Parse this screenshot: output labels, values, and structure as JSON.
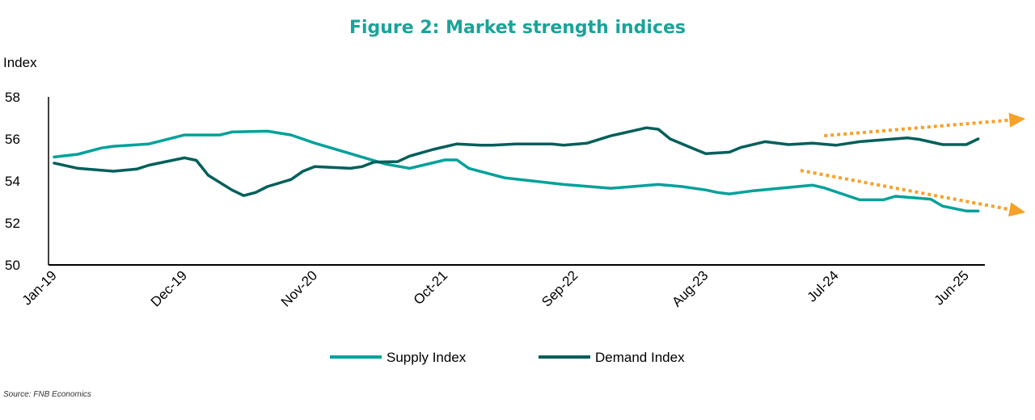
{
  "chart_data": {
    "type": "line",
    "title": "Figure 2: Market strength indices",
    "ylabel": "Index",
    "xlabel": "",
    "ylim": [
      50,
      58
    ],
    "yticks": [
      "50",
      "52",
      "54",
      "56",
      "58"
    ],
    "xticks": [
      {
        "date": "2019-01",
        "label": "Jan-19"
      },
      {
        "date": "2019-12",
        "label": "Dec-19"
      },
      {
        "date": "2020-11",
        "label": "Nov-20"
      },
      {
        "date": "2021-10",
        "label": "Oct-21"
      },
      {
        "date": "2022-09",
        "label": "Sep-22"
      },
      {
        "date": "2023-08",
        "label": "Aug-23"
      },
      {
        "date": "2024-07",
        "label": "Jul-24"
      },
      {
        "date": "2025-06",
        "label": "Jun-25"
      }
    ],
    "grid": false,
    "legend": "bottom",
    "series": [
      {
        "name": "Supply Index",
        "color": "#00A19A",
        "points": [
          [
            "2019-01",
            55.14
          ],
          [
            "2019-03",
            55.27
          ],
          [
            "2019-05",
            55.57
          ],
          [
            "2019-06",
            55.65
          ],
          [
            "2019-09",
            55.76
          ],
          [
            "2019-12",
            56.19
          ],
          [
            "2020-03",
            56.19
          ],
          [
            "2020-04",
            56.33
          ],
          [
            "2020-07",
            56.37
          ],
          [
            "2020-09",
            56.19
          ],
          [
            "2020-11",
            55.8
          ],
          [
            "2021-02",
            55.3
          ],
          [
            "2021-05",
            54.8
          ],
          [
            "2021-07",
            54.6
          ],
          [
            "2021-10",
            55.0
          ],
          [
            "2021-11",
            55.0
          ],
          [
            "2021-12",
            54.6
          ],
          [
            "2022-03",
            54.15
          ],
          [
            "2022-08",
            53.83
          ],
          [
            "2022-12",
            53.65
          ],
          [
            "2023-04",
            53.83
          ],
          [
            "2023-06",
            53.73
          ],
          [
            "2023-08",
            53.57
          ],
          [
            "2023-09",
            53.45
          ],
          [
            "2023-10",
            53.38
          ],
          [
            "2023-12",
            53.53
          ],
          [
            "2024-05",
            53.8
          ],
          [
            "2024-06",
            53.67
          ],
          [
            "2024-09",
            53.1
          ],
          [
            "2024-11",
            53.1
          ],
          [
            "2024-12",
            53.27
          ],
          [
            "2025-03",
            53.13
          ],
          [
            "2025-04",
            52.8
          ],
          [
            "2025-06",
            52.57
          ],
          [
            "2025-07",
            52.57
          ]
        ]
      },
      {
        "name": "Demand Index",
        "color": "#005F5A",
        "points": [
          [
            "2019-01",
            54.85
          ],
          [
            "2019-03",
            54.6
          ],
          [
            "2019-06",
            54.46
          ],
          [
            "2019-08",
            54.57
          ],
          [
            "2019-09",
            54.75
          ],
          [
            "2019-12",
            55.1
          ],
          [
            "2020-01",
            54.98
          ],
          [
            "2020-02",
            54.27
          ],
          [
            "2020-04",
            53.57
          ],
          [
            "2020-05",
            53.3
          ],
          [
            "2020-06",
            53.45
          ],
          [
            "2020-07",
            53.73
          ],
          [
            "2020-09",
            54.07
          ],
          [
            "2020-10",
            54.46
          ],
          [
            "2020-11",
            54.68
          ],
          [
            "2021-02",
            54.6
          ],
          [
            "2021-03",
            54.68
          ],
          [
            "2021-04",
            54.9
          ],
          [
            "2021-06",
            54.92
          ],
          [
            "2021-07",
            55.18
          ],
          [
            "2021-09",
            55.5
          ],
          [
            "2021-11",
            55.76
          ],
          [
            "2022-01",
            55.7
          ],
          [
            "2022-02",
            55.7
          ],
          [
            "2022-04",
            55.76
          ],
          [
            "2022-07",
            55.76
          ],
          [
            "2022-08",
            55.7
          ],
          [
            "2022-10",
            55.8
          ],
          [
            "2022-12",
            56.15
          ],
          [
            "2023-03",
            56.53
          ],
          [
            "2023-04",
            56.46
          ],
          [
            "2023-05",
            56.0
          ],
          [
            "2023-07",
            55.53
          ],
          [
            "2023-08",
            55.3
          ],
          [
            "2023-10",
            55.37
          ],
          [
            "2023-11",
            55.6
          ],
          [
            "2024-01",
            55.87
          ],
          [
            "2024-03",
            55.73
          ],
          [
            "2024-05",
            55.8
          ],
          [
            "2024-07",
            55.7
          ],
          [
            "2024-09",
            55.87
          ],
          [
            "2025-01",
            56.05
          ],
          [
            "2025-02",
            55.98
          ],
          [
            "2025-04",
            55.73
          ],
          [
            "2025-06",
            55.73
          ],
          [
            "2025-07",
            56.0
          ]
        ]
      }
    ],
    "annotations": [
      {
        "type": "dotted-arrow",
        "color": "#F7A128",
        "from": [
          "2024-06",
          56.15
        ],
        "to": [
          "2025-11",
          56.96
        ]
      },
      {
        "type": "dotted-arrow",
        "color": "#F7A128",
        "from": [
          "2024-04",
          54.5
        ],
        "to": [
          "2025-11",
          52.5
        ]
      }
    ],
    "title_color": "#1AA39A",
    "source": "Source: FNB Economics"
  }
}
